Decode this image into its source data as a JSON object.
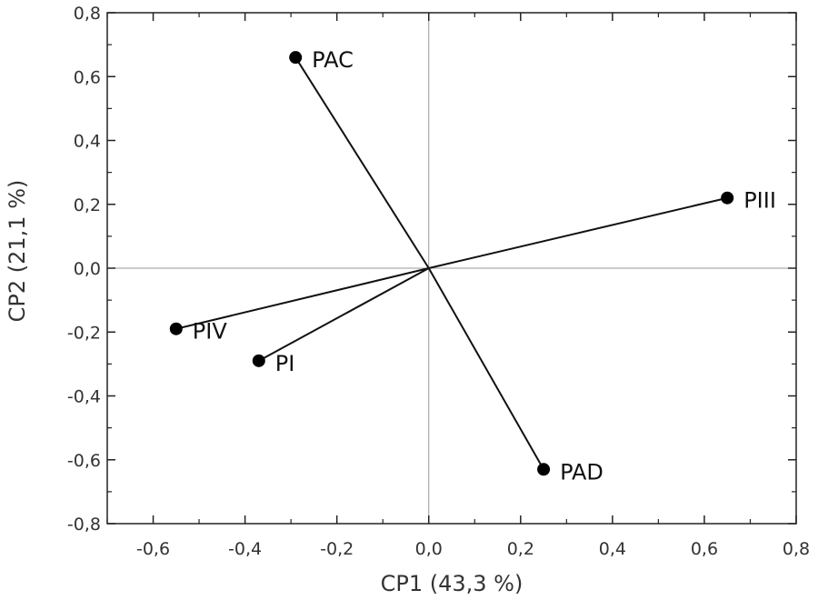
{
  "chart_data": {
    "type": "scatter",
    "title": "",
    "xlabel": "CP1 (43,3 %)",
    "ylabel": "CP2 (21,1 %)",
    "xlim": [
      -0.7,
      0.8
    ],
    "ylim": [
      -0.8,
      0.8
    ],
    "xticks": [
      -0.6,
      -0.4,
      -0.2,
      0.0,
      0.2,
      0.4,
      0.6,
      0.8
    ],
    "xtick_labels": [
      "-0,6",
      "-0,4",
      "-0,2",
      "0,0",
      "0,2",
      "0,4",
      "0,6",
      "0,8"
    ],
    "yticks": [
      -0.8,
      -0.6,
      -0.4,
      -0.2,
      0.0,
      0.2,
      0.4,
      0.6,
      0.8
    ],
    "ytick_labels": [
      "-0,8",
      "-0,6",
      "-0,4",
      "-0,2",
      "0,0",
      "0,2",
      "0,4",
      "0,6",
      "0,8"
    ],
    "grid": false,
    "reference_lines": "x=0 and y=0",
    "vectors_from_origin": true,
    "points": [
      {
        "label": "PAC",
        "x": -0.29,
        "y": 0.66
      },
      {
        "label": "PIII",
        "x": 0.65,
        "y": 0.22
      },
      {
        "label": "PIV",
        "x": -0.55,
        "y": -0.19
      },
      {
        "label": "PI",
        "x": -0.37,
        "y": -0.29
      },
      {
        "label": "PAD",
        "x": 0.25,
        "y": -0.63
      }
    ]
  }
}
